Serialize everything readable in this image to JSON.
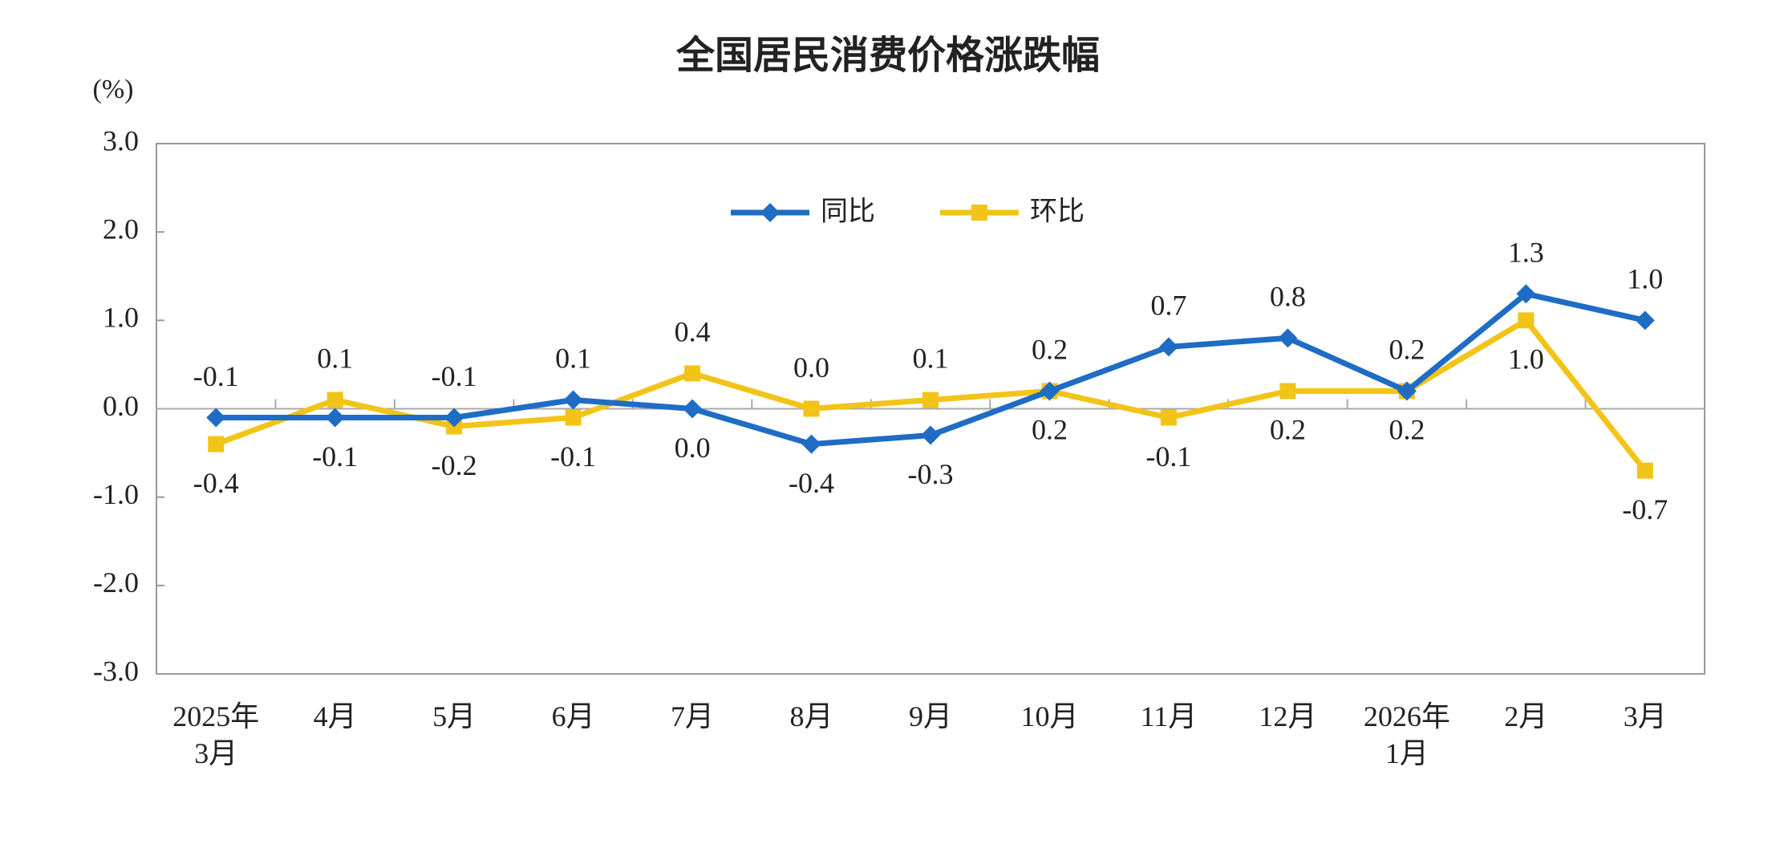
{
  "chart_data": {
    "type": "line",
    "title": "全国居民消费价格涨跌幅",
    "y_unit": "(%)",
    "categories": [
      "2025年\n3月",
      "4月",
      "5月",
      "6月",
      "7月",
      "8月",
      "9月",
      "10月",
      "11月",
      "12月",
      "2026年\n1月",
      "2月",
      "3月"
    ],
    "series": [
      {
        "name": "同比",
        "color": "#1f6cc4",
        "marker": "diamond",
        "values": [
          -0.1,
          -0.1,
          -0.1,
          0.1,
          0,
          -0.4,
          -0.3,
          0.2,
          0.7,
          0.8,
          0.2,
          1.3,
          1.0
        ],
        "value_labels": [
          "-0.1",
          "-0.1",
          "-0.1",
          "0.1",
          "0.0",
          "-0.4",
          "-0.3",
          "0.2",
          "0.7",
          "0.8",
          "0.2",
          "1.3",
          "1.0"
        ]
      },
      {
        "name": "环比",
        "color": "#f2c417",
        "marker": "square",
        "values": [
          -0.4,
          0.1,
          -0.2,
          -0.1,
          0.4,
          0,
          0.1,
          0.2,
          -0.1,
          0.2,
          0.2,
          1.0,
          -0.7
        ],
        "value_labels": [
          "-0.4",
          "0.1",
          "-0.2",
          "-0.1",
          "0.4",
          "0.0",
          "0.1",
          "0.2",
          "-0.1",
          "0.2",
          "0.2",
          "1.0",
          "-0.7"
        ]
      }
    ],
    "ylim": [
      -3,
      3
    ],
    "yticks": [
      {
        "value": -3,
        "label": "-3.0"
      },
      {
        "value": -2,
        "label": "-2.0"
      },
      {
        "value": -1,
        "label": "-1.0"
      },
      {
        "value": 0,
        "label": "0.0"
      },
      {
        "value": 1,
        "label": "1.0"
      },
      {
        "value": 2,
        "label": "2.0"
      },
      {
        "value": 3,
        "label": "3.0"
      }
    ],
    "legend": "top"
  }
}
